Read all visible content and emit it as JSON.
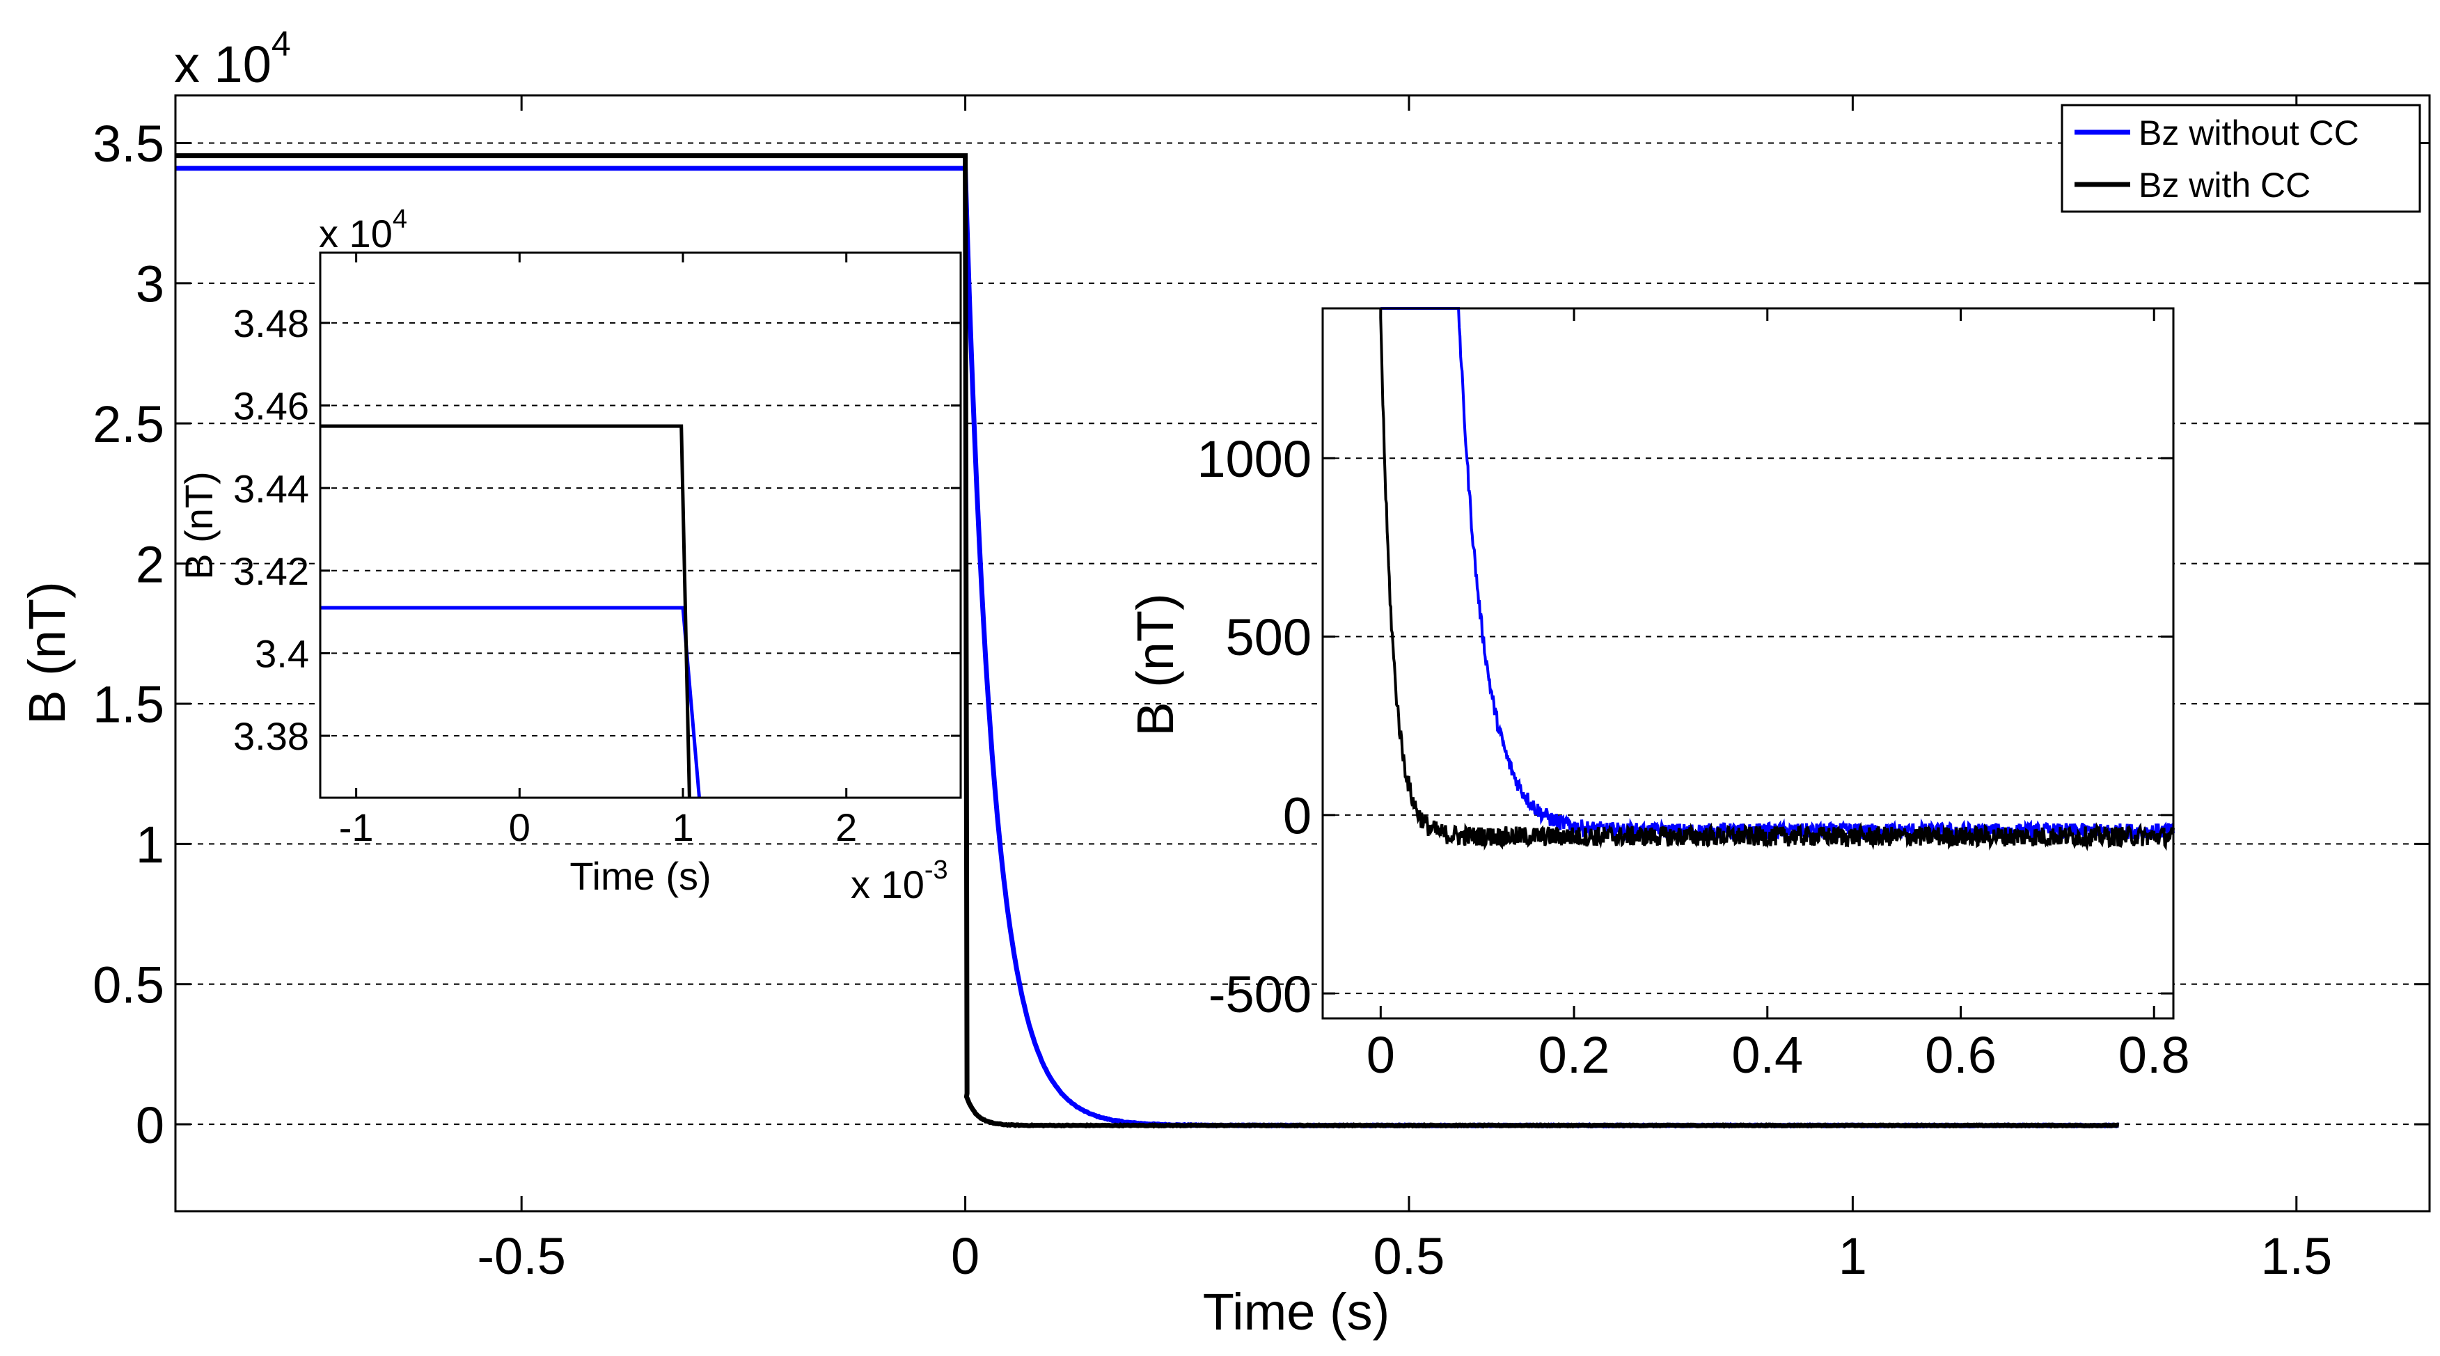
{
  "chart_data": [
    {
      "id": "main",
      "type": "line",
      "title": "",
      "xlabel": "Time (s)",
      "ylabel": "B (nT)",
      "y_multiplier_label": "x 10",
      "y_multiplier_exp": "4",
      "xlim": [
        -0.89,
        1.65
      ],
      "ylim": [
        -0.31,
        3.67
      ],
      "xticks": [
        -0.5,
        0,
        0.5,
        1,
        1.5
      ],
      "xtick_labels": [
        "-0.5",
        "0",
        "0.5",
        "1",
        "1.5"
      ],
      "yticks": [
        0,
        0.5,
        1,
        1.5,
        2,
        2.5,
        3,
        3.5
      ],
      "ytick_labels": [
        "0",
        "0.5",
        "1",
        "1.5",
        "2",
        "2.5",
        "3",
        "3.5"
      ],
      "grid": "y-dashed",
      "legend_position": "top-right",
      "series": [
        {
          "name": "Bz without CC",
          "color": "#0000ff",
          "pre_level": 3.41,
          "decay_tau": 0.032,
          "final": -0.004,
          "noise": 0.003
        },
        {
          "name": "Bz with CC",
          "color": "#000000",
          "pre_level": 3.455,
          "jump_to": 0.11,
          "decay_tau": 0.012,
          "final": -0.004,
          "noise": 0.003
        }
      ],
      "x_start": -0.89,
      "x_switch": 0.0,
      "x_end": 1.3
    },
    {
      "id": "inset-left",
      "type": "line",
      "title": "",
      "xlabel": "Time (s)",
      "ylabel": "B (nT)",
      "y_multiplier_label": "x 10",
      "y_multiplier_exp": "4",
      "x_multiplier_label": "x 10",
      "x_multiplier_exp": "-3",
      "xlim": [
        -1.22,
        2.7
      ],
      "ylim": [
        3.365,
        3.497
      ],
      "xticks": [
        -1,
        0,
        1,
        2
      ],
      "xtick_labels": [
        "-1",
        "0",
        "1",
        "2"
      ],
      "yticks": [
        3.38,
        3.4,
        3.42,
        3.44,
        3.46,
        3.48
      ],
      "ytick_labels": [
        "3.38",
        "3.4",
        "3.42",
        "3.44",
        "3.46",
        "3.48"
      ],
      "grid": "y-dashed",
      "series": [
        {
          "name": "Bz without CC",
          "color": "#0000ff",
          "points": [
            [
              -1.22,
              3.411
            ],
            [
              1.0,
              3.411
            ],
            [
              1.1,
              3.365
            ]
          ]
        },
        {
          "name": "Bz with CC",
          "color": "#000000",
          "points": [
            [
              -1.22,
              3.455
            ],
            [
              0.99,
              3.455
            ],
            [
              1.04,
              3.365
            ]
          ]
        }
      ]
    },
    {
      "id": "inset-right",
      "type": "line",
      "title": "",
      "xlabel": "",
      "ylabel": "B (nT)",
      "xlim": [
        -0.06,
        0.82
      ],
      "ylim": [
        -570,
        1420
      ],
      "xticks": [
        0,
        0.2,
        0.4,
        0.6,
        0.8
      ],
      "xtick_labels": [
        "0",
        "0.2",
        "0.4",
        "0.6",
        "0.8"
      ],
      "yticks": [
        -500,
        0,
        500,
        1000
      ],
      "ytick_labels": [
        "-500",
        "0",
        "500",
        "1000"
      ],
      "grid": "y-dashed",
      "series": [
        {
          "name": "Bz without CC",
          "color": "#0000ff",
          "decay_start": 0.0,
          "amp": 34000,
          "decay_tau": 0.0256,
          "final": -45,
          "noise": 22,
          "x_end": 0.82
        },
        {
          "name": "Bz with CC",
          "color": "#000000",
          "decay_start": 0.0,
          "amp": 1400,
          "decay_tau": 0.0125,
          "final": -60,
          "noise": 28,
          "x_end": 0.82
        }
      ]
    }
  ],
  "legend": {
    "items": [
      {
        "label": "Bz without CC",
        "color": "#0000ff"
      },
      {
        "label": "Bz with CC",
        "color": "#000000"
      }
    ]
  }
}
